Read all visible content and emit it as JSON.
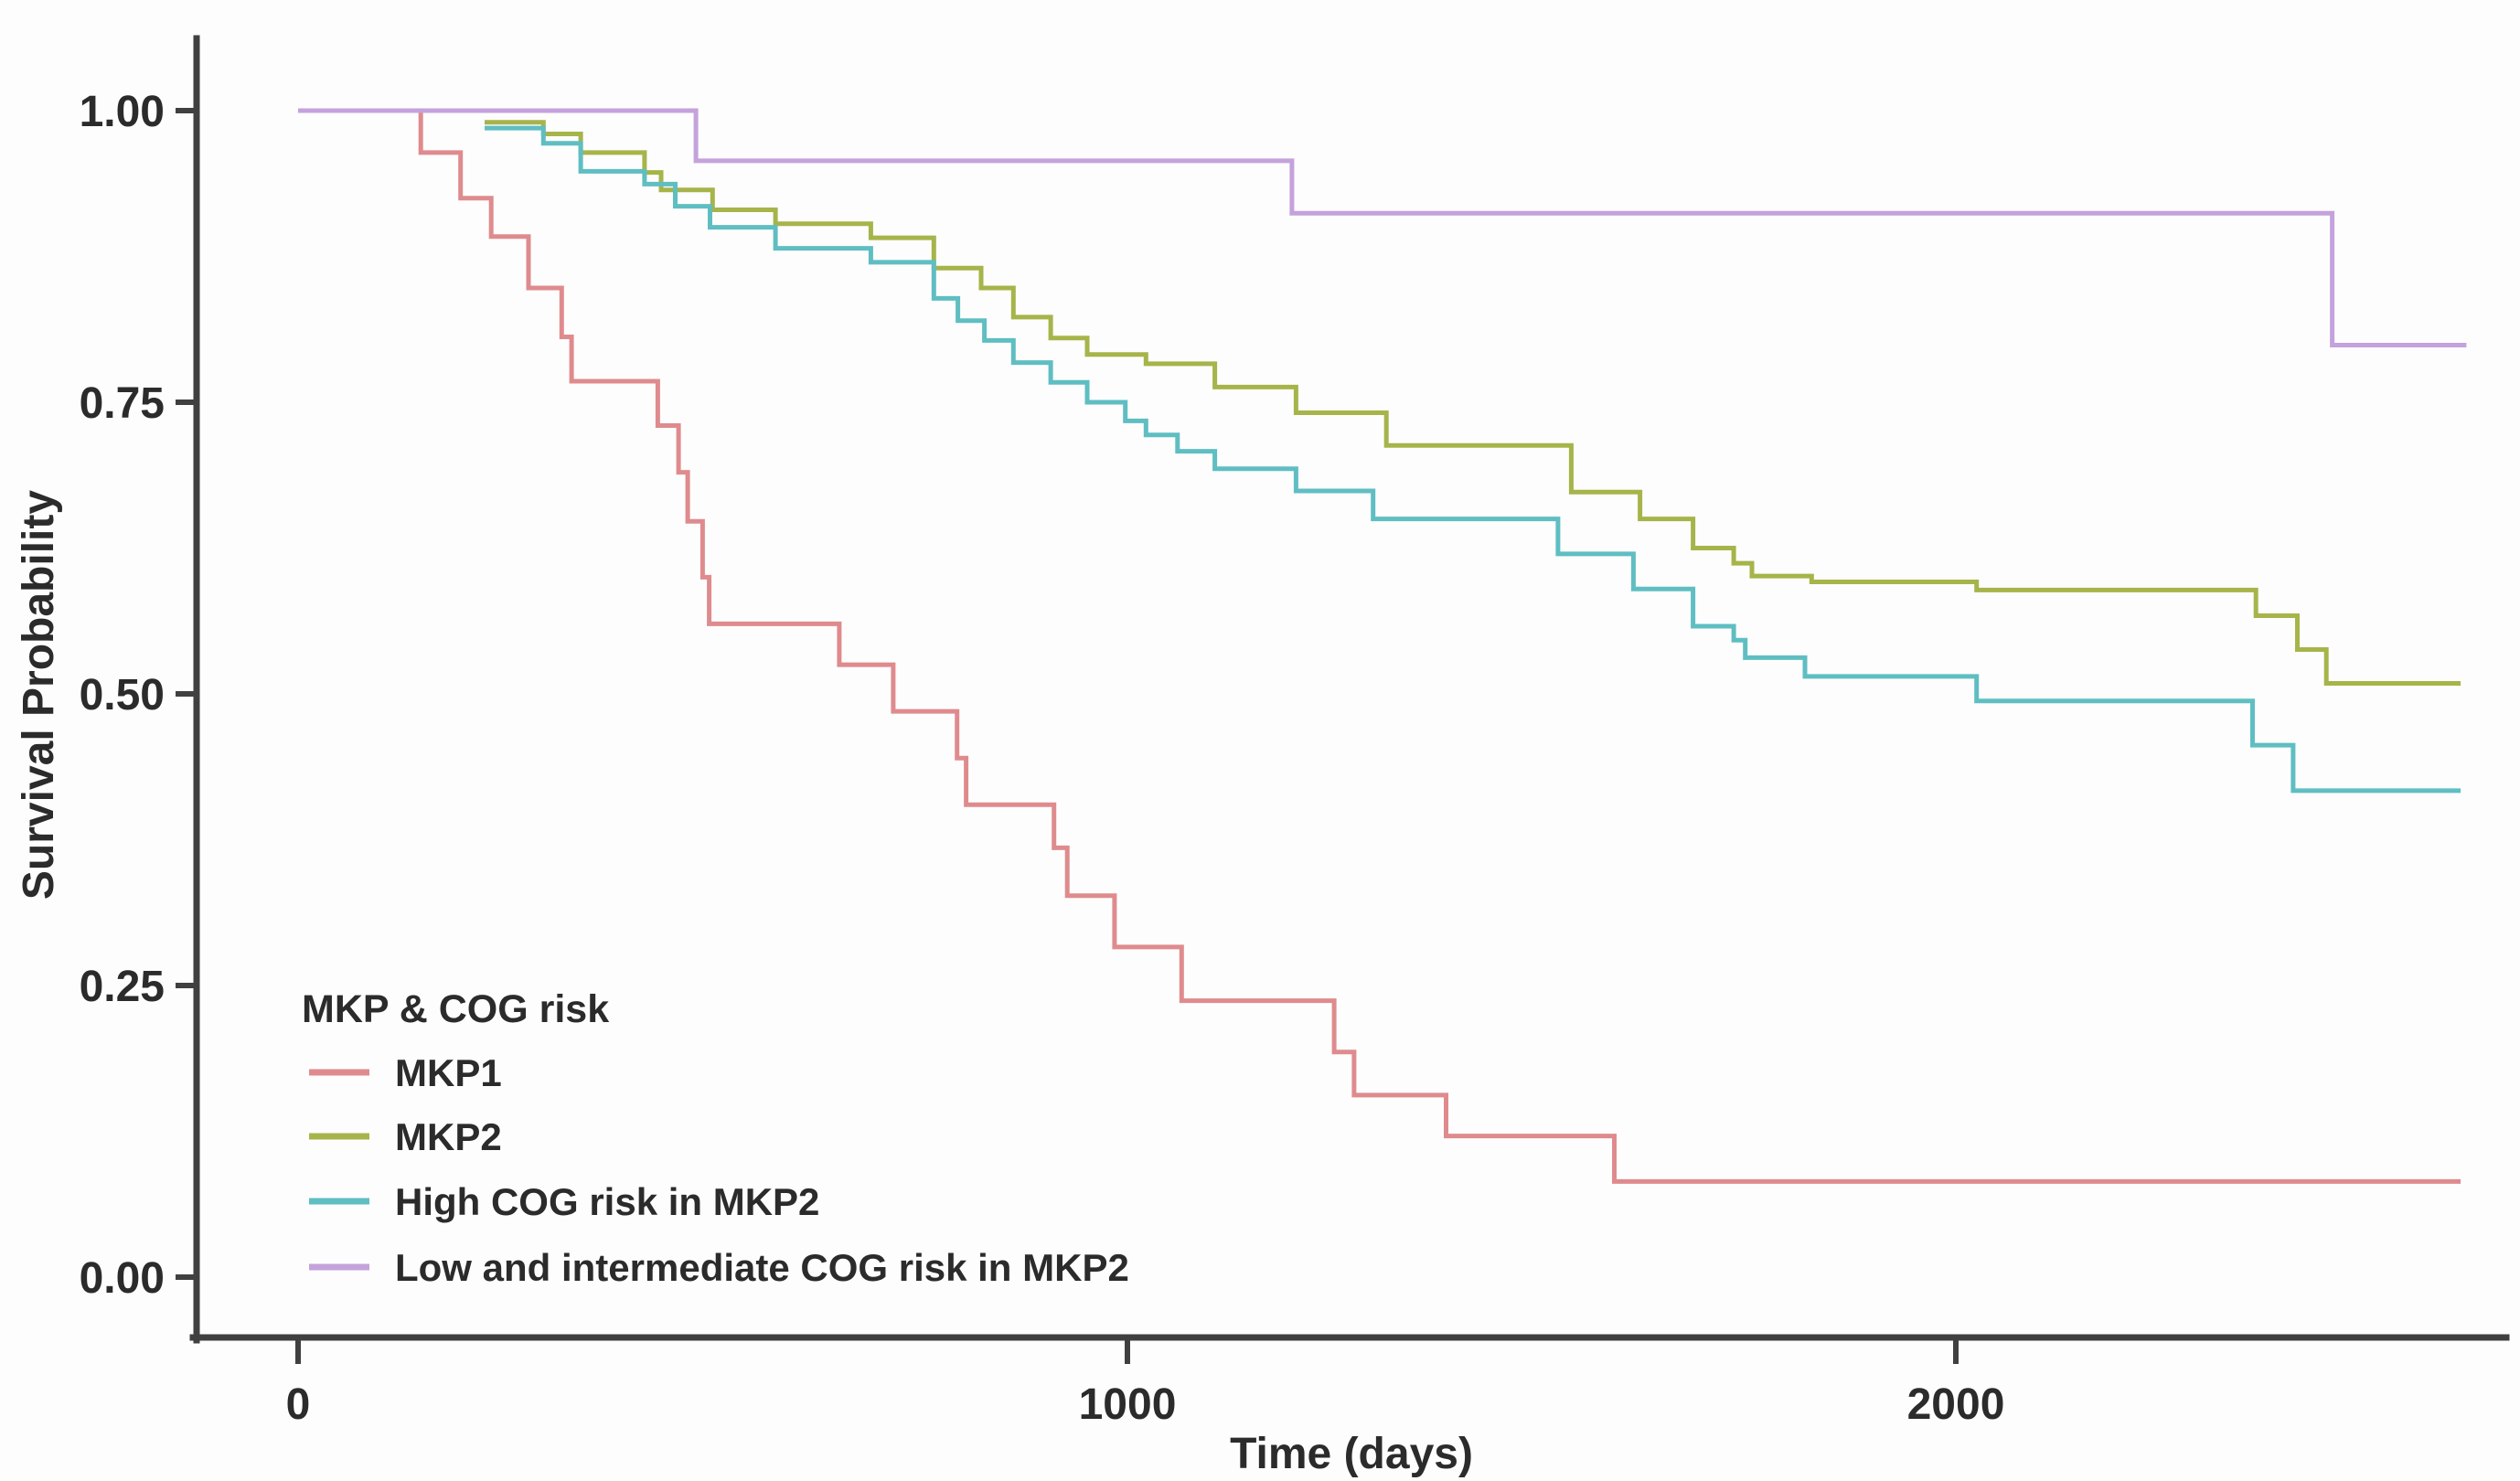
{
  "figure": {
    "background": "#fdfdfd",
    "y_axis": {
      "label": "Survival Probability",
      "ticks": [
        "1.00",
        "0.75",
        "0.50",
        "0.25",
        "0.00"
      ],
      "tick_values": [
        1.0,
        0.75,
        0.5,
        0.25,
        0.0
      ]
    },
    "x_axis": {
      "label": "Time (days)",
      "ticks": [
        "0",
        "1000",
        "2000"
      ],
      "tick_values": [
        0,
        1000,
        2000
      ]
    },
    "legend": {
      "title": "MKP & COG risk"
    }
  },
  "chart_data": {
    "type": "line",
    "subtype": "kaplan-meier-step-curves",
    "title": "",
    "xlabel": "Time (days)",
    "ylabel": "Survival Probability",
    "xlim": [
      0,
      2670
    ],
    "ylim": [
      0.0,
      1.0
    ],
    "grid": false,
    "legend_position": "inside-bottom-left",
    "x_tick_values": [
      0,
      1000,
      2000
    ],
    "y_tick_values": [
      0.0,
      0.25,
      0.5,
      0.75,
      1.0
    ],
    "series": [
      {
        "name": "MKP1",
        "color": "#df8b8e",
        "steps": [
          [
            0,
            1.0
          ],
          [
            148,
            0.964
          ],
          [
            196,
            0.925
          ],
          [
            233,
            0.892
          ],
          [
            278,
            0.848
          ],
          [
            318,
            0.806
          ],
          [
            330,
            0.768
          ],
          [
            434,
            0.73
          ],
          [
            459,
            0.69
          ],
          [
            470,
            0.648
          ],
          [
            488,
            0.6
          ],
          [
            496,
            0.56
          ],
          [
            653,
            0.525
          ],
          [
            718,
            0.485
          ],
          [
            795,
            0.445
          ],
          [
            806,
            0.405
          ],
          [
            912,
            0.368
          ],
          [
            928,
            0.327
          ],
          [
            985,
            0.283
          ],
          [
            1066,
            0.237
          ],
          [
            1250,
            0.193
          ],
          [
            1274,
            0.156
          ],
          [
            1385,
            0.121
          ],
          [
            1588,
            0.082
          ],
          [
            2609,
            0.082
          ]
        ]
      },
      {
        "name": "MKP2",
        "color": "#a6b44a",
        "steps": [
          [
            225,
            0.99
          ],
          [
            296,
            0.98
          ],
          [
            341,
            0.964
          ],
          [
            418,
            0.947
          ],
          [
            438,
            0.932
          ],
          [
            500,
            0.915
          ],
          [
            576,
            0.903
          ],
          [
            691,
            0.891
          ],
          [
            767,
            0.865
          ],
          [
            824,
            0.848
          ],
          [
            863,
            0.823
          ],
          [
            908,
            0.805
          ],
          [
            952,
            0.791
          ],
          [
            1023,
            0.783
          ],
          [
            1106,
            0.763
          ],
          [
            1204,
            0.741
          ],
          [
            1313,
            0.713
          ],
          [
            1536,
            0.673
          ],
          [
            1619,
            0.65
          ],
          [
            1683,
            0.625
          ],
          [
            1732,
            0.612
          ],
          [
            1754,
            0.601
          ],
          [
            1826,
            0.596
          ],
          [
            2025,
            0.589
          ],
          [
            2362,
            0.567
          ],
          [
            2412,
            0.538
          ],
          [
            2447,
            0.509
          ],
          [
            2609,
            0.509
          ]
        ]
      },
      {
        "name": "High COG risk in MKP2",
        "color": "#5fbec2",
        "steps": [
          [
            225,
            0.985
          ],
          [
            296,
            0.972
          ],
          [
            341,
            0.948
          ],
          [
            418,
            0.937
          ],
          [
            455,
            0.918
          ],
          [
            497,
            0.9
          ],
          [
            576,
            0.882
          ],
          [
            691,
            0.87
          ],
          [
            767,
            0.839
          ],
          [
            796,
            0.82
          ],
          [
            828,
            0.803
          ],
          [
            863,
            0.784
          ],
          [
            908,
            0.767
          ],
          [
            952,
            0.75
          ],
          [
            998,
            0.734
          ],
          [
            1023,
            0.722
          ],
          [
            1061,
            0.708
          ],
          [
            1106,
            0.693
          ],
          [
            1204,
            0.674
          ],
          [
            1297,
            0.65
          ],
          [
            1520,
            0.62
          ],
          [
            1611,
            0.59
          ],
          [
            1683,
            0.558
          ],
          [
            1732,
            0.546
          ],
          [
            1746,
            0.531
          ],
          [
            1818,
            0.515
          ],
          [
            2025,
            0.494
          ],
          [
            2358,
            0.456
          ],
          [
            2407,
            0.417
          ],
          [
            2609,
            0.417
          ]
        ]
      },
      {
        "name": "Low and intermediate COG risk in MKP2",
        "color": "#c4a2dc",
        "steps": [
          [
            0,
            1.0
          ],
          [
            480,
            0.957
          ],
          [
            1199,
            0.912
          ],
          [
            2454,
            0.799
          ],
          [
            2616,
            0.799
          ]
        ]
      }
    ]
  }
}
